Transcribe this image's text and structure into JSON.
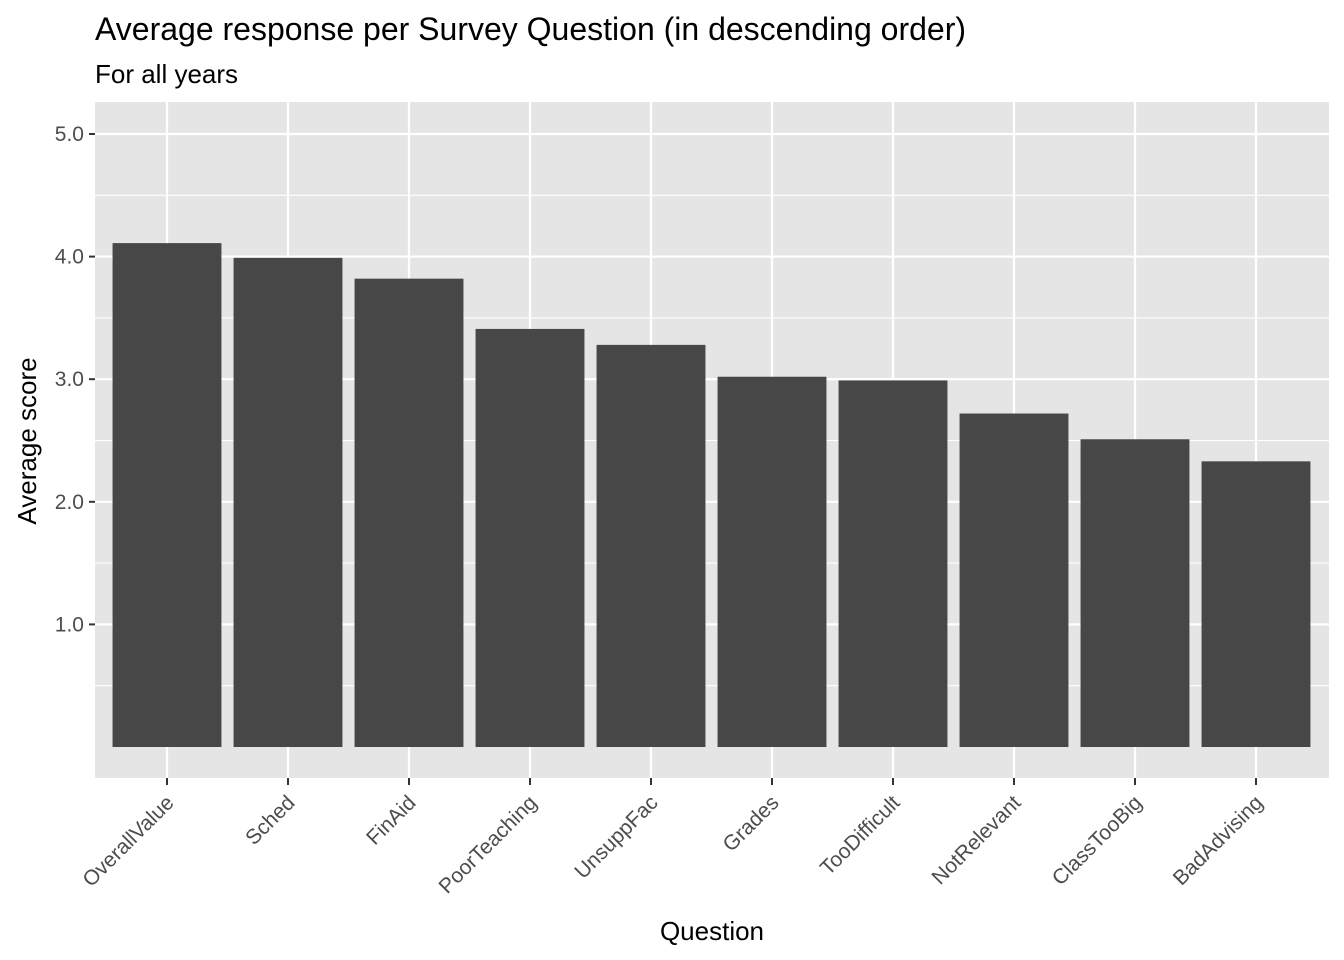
{
  "chart_data": {
    "type": "bar",
    "title": "Average response per Survey Question (in descending order)",
    "subtitle": "For all years",
    "xlabel": "Question",
    "ylabel": "Average score",
    "categories": [
      "OverallValue",
      "Sched",
      "FinAid",
      "PoorTeaching",
      "UnsuppFac",
      "Grades",
      "TooDifficult",
      "NotRelevant",
      "ClassTooBig",
      "BadAdvising"
    ],
    "values": [
      4.11,
      3.99,
      3.82,
      3.41,
      3.28,
      3.02,
      2.99,
      2.72,
      2.51,
      2.33
    ],
    "yticks": [
      1.0,
      2.0,
      3.0,
      4.0,
      5.0
    ],
    "ytick_labels": [
      "1.0",
      "2.0",
      "3.0",
      "4.0",
      "5.0"
    ],
    "ylim": [
      -0.25,
      5.25
    ],
    "grid": true,
    "colors": {
      "bar": "#474747",
      "panel": "#e5e5e5",
      "grid": "#ffffff"
    }
  }
}
